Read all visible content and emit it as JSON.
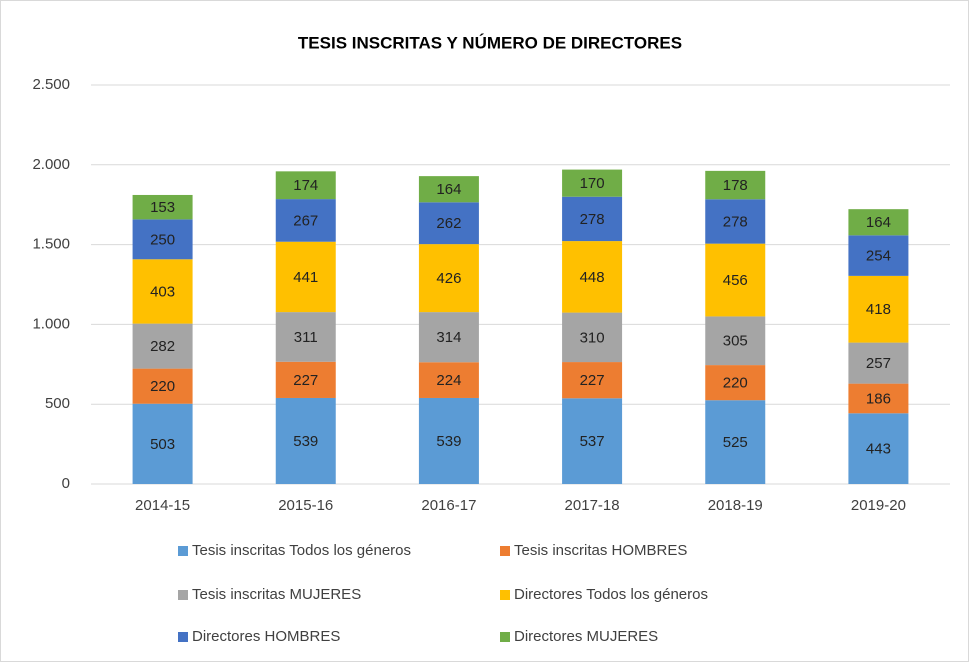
{
  "chart_data": {
    "type": "stacked_bar",
    "title": "TESIS INSCRITAS Y NÚMERO DE DIRECTORES",
    "categories": [
      "2014-15",
      "2015-16",
      "2016-17",
      "2017-18",
      "2018-19",
      "2019-20"
    ],
    "series": [
      {
        "name": "Tesis inscritas Todos los géneros",
        "color": "#5b9bd5",
        "values": [
          503,
          539,
          539,
          537,
          525,
          443
        ]
      },
      {
        "name": "Tesis inscritas HOMBRES",
        "color": "#ed7d31",
        "values": [
          220,
          227,
          224,
          227,
          220,
          186
        ]
      },
      {
        "name": "Tesis inscritas MUJERES",
        "color": "#a5a5a5",
        "values": [
          282,
          311,
          314,
          310,
          305,
          257
        ]
      },
      {
        "name": "Directores Todos los géneros",
        "color": "#ffc000",
        "values": [
          403,
          441,
          426,
          448,
          456,
          418
        ]
      },
      {
        "name": "Directores HOMBRES",
        "color": "#4472c4",
        "values": [
          250,
          267,
          262,
          278,
          278,
          254
        ]
      },
      {
        "name": "Directores MUJERES",
        "color": "#70ad47",
        "values": [
          153,
          174,
          164,
          170,
          178,
          164
        ]
      }
    ],
    "ylim": [
      0,
      2500
    ],
    "yticks": [
      0,
      500,
      {
        "value": 1000,
        "label": "1.000"
      },
      {
        "value": 1500,
        "label": "1.500"
      },
      {
        "value": 2000,
        "label": "2.000"
      },
      {
        "value": 2500,
        "label": "2.500"
      }
    ],
    "grid": true,
    "legend": "bottom"
  }
}
